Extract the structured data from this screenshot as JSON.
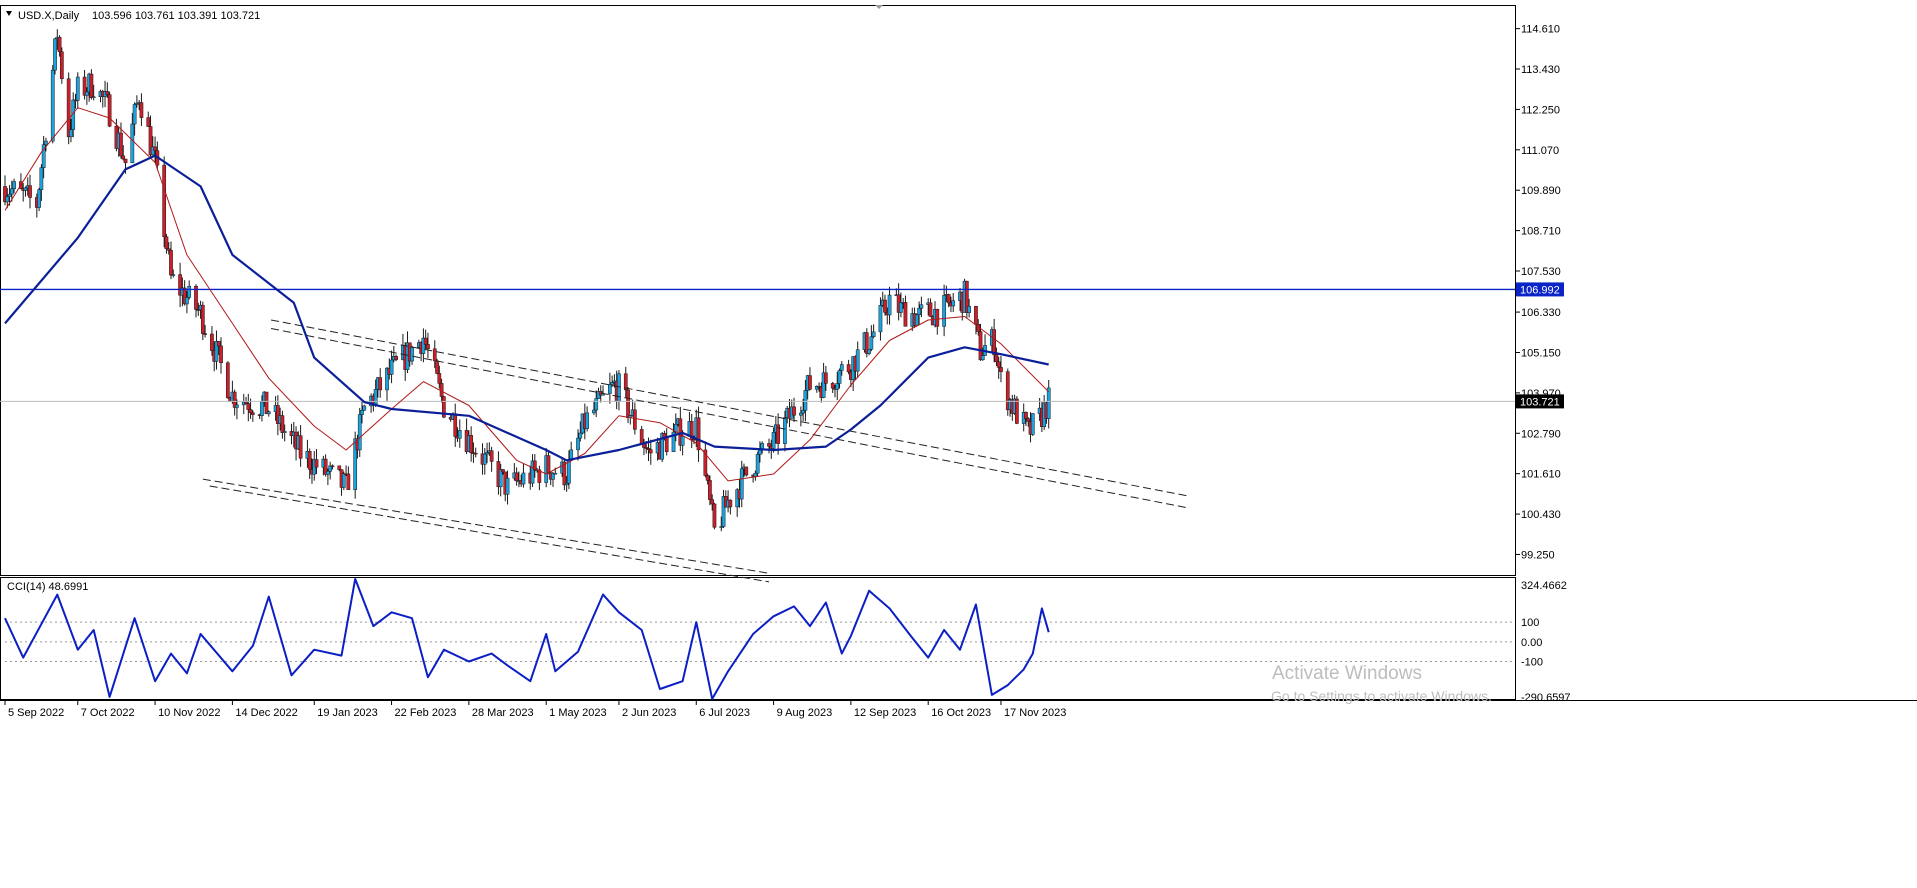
{
  "header": {
    "symbol": "USD.X,Daily",
    "ohlc": "103.596 103.761 103.391 103.721"
  },
  "chart_data": {
    "type": "candlestick",
    "price_axis": {
      "ticks": [
        "114.610",
        "113.430",
        "112.250",
        "111.070",
        "109.890",
        "108.710",
        "107.530",
        "106.330",
        "105.150",
        "103.970",
        "102.790",
        "101.610",
        "100.430",
        "99.250"
      ],
      "range": [
        98.65,
        115.3
      ]
    },
    "date_labels": [
      "5 Sep 2022",
      "7 Oct 2022",
      "10 Nov 2022",
      "14 Dec 2022",
      "19 Jan 2023",
      "22 Feb 2023",
      "28 Mar 2023",
      "1 May 2023",
      "2 Jun 2023",
      "6 Jul 2023",
      "9 Aug 2023",
      "12 Sep 2023",
      "16 Oct 2023",
      "17 Nov 2023"
    ],
    "horizontal_level": {
      "value": 106.992,
      "label": "106.992",
      "color": "#0b24c8"
    },
    "current_price": {
      "value": 103.721,
      "label": "103.721"
    },
    "price_path": [
      [
        "5 Sep 2022",
        110.0
      ],
      [
        "19 Sep 2022",
        109.5
      ],
      [
        "28 Sep 2022",
        114.5
      ],
      [
        "3 Oct 2022",
        111.6
      ],
      [
        "7 Oct 2022",
        112.8
      ],
      [
        "14 Oct 2022",
        113.0
      ],
      [
        "21 Oct 2022",
        112.2
      ],
      [
        "28 Oct 2022",
        110.7
      ],
      [
        "3 Nov 2022",
        112.7
      ],
      [
        "10 Nov 2022",
        110.7
      ],
      [
        "17 Nov 2022",
        107.3
      ],
      [
        "30 Nov 2022",
        106.3
      ],
      [
        "14 Dec 2022",
        103.9
      ],
      [
        "30 Dec 2022",
        103.5
      ],
      [
        "13 Jan 2023",
        102.2
      ],
      [
        "19 Jan 2023",
        101.9
      ],
      [
        "2 Feb 2023",
        101.2
      ],
      [
        "10 Feb 2023",
        103.5
      ],
      [
        "22 Feb 2023",
        104.6
      ],
      [
        "8 Mar 2023",
        105.6
      ],
      [
        "17 Mar 2023",
        103.6
      ],
      [
        "28 Mar 2023",
        102.6
      ],
      [
        "14 Apr 2023",
        101.2
      ],
      [
        "1 May 2023",
        101.8
      ],
      [
        "10 May 2023",
        101.6
      ],
      [
        "18 May 2023",
        103.1
      ],
      [
        "31 May 2023",
        104.2
      ],
      [
        "2 Jun 2023",
        104.1
      ],
      [
        "15 Jun 2023",
        102.2
      ],
      [
        "30 Jun 2023",
        102.9
      ],
      [
        "6 Jul 2023",
        103.0
      ],
      [
        "14 Jul 2023",
        99.9
      ],
      [
        "20 Jul 2023",
        100.8
      ],
      [
        "31 Jul 2023",
        101.9
      ],
      [
        "9 Aug 2023",
        102.5
      ],
      [
        "18 Aug 2023",
        103.5
      ],
      [
        "25 Aug 2023",
        104.2
      ],
      [
        "1 Sep 2023",
        104.3
      ],
      [
        "12 Sep 2023",
        104.8
      ],
      [
        "21 Sep 2023",
        105.6
      ],
      [
        "29 Sep 2023",
        106.7
      ],
      [
        "4 Oct 2023",
        106.4
      ],
      [
        "12 Oct 2023",
        106.2
      ],
      [
        "16 Oct 2023",
        106.3
      ],
      [
        "23 Oct 2023",
        106.4
      ],
      [
        "1 Nov 2023",
        106.8
      ],
      [
        "8 Nov 2023",
        105.2
      ],
      [
        "14 Nov 2023",
        105.5
      ],
      [
        "17 Nov 2023",
        104.3
      ],
      [
        "22 Nov 2023",
        103.6
      ],
      [
        "29 Nov 2023",
        102.8
      ],
      [
        "4 Dec 2023",
        103.2
      ],
      [
        "8 Dec 2023",
        103.721
      ]
    ],
    "ma_slow": {
      "color": "#0b1f99",
      "points": [
        [
          "5 Sep 2022",
          106.0
        ],
        [
          "7 Oct 2022",
          108.5
        ],
        [
          "28 Oct 2022",
          110.5
        ],
        [
          "10 Nov 2022",
          110.9
        ],
        [
          "30 Nov 2022",
          110.0
        ],
        [
          "14 Dec 2022",
          108.0
        ],
        [
          "10 Jan 2023",
          106.6
        ],
        [
          "19 Jan 2023",
          105.0
        ],
        [
          "10 Feb 2023",
          103.7
        ],
        [
          "22 Feb 2023",
          103.5
        ],
        [
          "28 Mar 2023",
          103.3
        ],
        [
          "1 May 2023",
          102.3
        ],
        [
          "10 May 2023",
          102.0
        ],
        [
          "2 Jun 2023",
          102.3
        ],
        [
          "30 Jun 2023",
          102.8
        ],
        [
          "14 Jul 2023",
          102.4
        ],
        [
          "9 Aug 2023",
          102.3
        ],
        [
          "1 Sep 2023",
          102.4
        ],
        [
          "12 Sep 2023",
          102.9
        ],
        [
          "25 Sep 2023",
          103.6
        ],
        [
          "16 Oct 2023",
          105.0
        ],
        [
          "1 Nov 2023",
          105.3
        ],
        [
          "17 Nov 2023",
          105.1
        ],
        [
          "8 Dec 2023",
          104.8
        ]
      ]
    },
    "ma_fast": {
      "color": "#b01818",
      "points": [
        [
          "5 Sep 2022",
          109.3
        ],
        [
          "21 Sep 2022",
          111.0
        ],
        [
          "7 Oct 2022",
          112.3
        ],
        [
          "21 Oct 2022",
          112.0
        ],
        [
          "10 Nov 2022",
          110.7
        ],
        [
          "24 Nov 2022",
          108.0
        ],
        [
          "14 Dec 2022",
          106.0
        ],
        [
          "30 Dec 2022",
          104.4
        ],
        [
          "19 Jan 2023",
          103.0
        ],
        [
          "2 Feb 2023",
          102.3
        ],
        [
          "22 Feb 2023",
          103.5
        ],
        [
          "8 Mar 2023",
          104.3
        ],
        [
          "28 Mar 2023",
          103.6
        ],
        [
          "18 Apr 2023",
          102.0
        ],
        [
          "1 May 2023",
          101.6
        ],
        [
          "18 May 2023",
          102.2
        ],
        [
          "2 Jun 2023",
          103.3
        ],
        [
          "20 Jun 2023",
          103.1
        ],
        [
          "6 Jul 2023",
          102.5
        ],
        [
          "20 Jul 2023",
          101.4
        ],
        [
          "9 Aug 2023",
          101.6
        ],
        [
          "25 Aug 2023",
          102.6
        ],
        [
          "12 Sep 2023",
          104.2
        ],
        [
          "29 Sep 2023",
          105.5
        ],
        [
          "16 Oct 2023",
          106.1
        ],
        [
          "1 Nov 2023",
          106.2
        ],
        [
          "17 Nov 2023",
          105.4
        ],
        [
          "8 Dec 2023",
          104.0
        ]
      ]
    },
    "channel_lines": [
      {
        "from": [
          "31 Dec 2022",
          106.1
        ],
        "to": [
          "8 Feb 2024",
          100.95
        ]
      },
      {
        "from": [
          "31 Dec 2022",
          105.85
        ],
        "to": [
          "8 Feb 2024",
          100.6
        ]
      },
      {
        "from": [
          "1 Dec 2022",
          101.45
        ],
        "to": [
          "7 Aug 2023",
          98.7
        ]
      },
      {
        "from": [
          "4 Dec 2022",
          101.25
        ],
        "to": [
          "7 Aug 2023",
          98.45
        ]
      }
    ],
    "indicator": {
      "label": "CCI(14) 48.6991",
      "color": "#0c1fc4",
      "ticks": [
        "324.4662",
        "100",
        "0.00",
        "-100",
        "-290.6597"
      ],
      "range": [
        -290.6597,
        324.4662
      ],
      "levels": [
        100,
        0,
        -100
      ],
      "values": [
        [
          "5 Sep 2022",
          120
        ],
        [
          "13 Sep 2022",
          -80
        ],
        [
          "28 Sep 2022",
          240
        ],
        [
          "7 Oct 2022",
          -40
        ],
        [
          "14 Oct 2022",
          60
        ],
        [
          "21 Oct 2022",
          -280
        ],
        [
          "1 Nov 2022",
          120
        ],
        [
          "10 Nov 2022",
          -200
        ],
        [
          "17 Nov 2022",
          -60
        ],
        [
          "24 Nov 2022",
          -160
        ],
        [
          "30 Nov 2022",
          40
        ],
        [
          "14 Dec 2022",
          -150
        ],
        [
          "23 Dec 2022",
          -20
        ],
        [
          "30 Dec 2022",
          230
        ],
        [
          "9 Jan 2023",
          -170
        ],
        [
          "19 Jan 2023",
          -40
        ],
        [
          "31 Jan 2023",
          -70
        ],
        [
          "6 Feb 2023",
          320
        ],
        [
          "14 Feb 2023",
          80
        ],
        [
          "22 Feb 2023",
          150
        ],
        [
          "3 Mar 2023",
          120
        ],
        [
          "10 Mar 2023",
          -180
        ],
        [
          "17 Mar 2023",
          -40
        ],
        [
          "28 Mar 2023",
          -100
        ],
        [
          "7 Apr 2023",
          -60
        ],
        [
          "14 Apr 2023",
          -120
        ],
        [
          "24 Apr 2023",
          -200
        ],
        [
          "1 May 2023",
          40
        ],
        [
          "5 May 2023",
          -150
        ],
        [
          "15 May 2023",
          -50
        ],
        [
          "26 May 2023",
          240
        ],
        [
          "2 Jun 2023",
          150
        ],
        [
          "12 Jun 2023",
          60
        ],
        [
          "20 Jun 2023",
          -240
        ],
        [
          "30 Jun 2023",
          -200
        ],
        [
          "6 Jul 2023",
          100
        ],
        [
          "13 Jul 2023",
          -290
        ],
        [
          "20 Jul 2023",
          -150
        ],
        [
          "31 Jul 2023",
          40
        ],
        [
          "9 Aug 2023",
          130
        ],
        [
          "18 Aug 2023",
          180
        ],
        [
          "25 Aug 2023",
          80
        ],
        [
          "1 Sep 2023",
          200
        ],
        [
          "8 Sep 2023",
          -60
        ],
        [
          "12 Sep 2023",
          30
        ],
        [
          "20 Sep 2023",
          260
        ],
        [
          "29 Sep 2023",
          170
        ],
        [
          "9 Oct 2023",
          20
        ],
        [
          "16 Oct 2023",
          -80
        ],
        [
          "23 Oct 2023",
          60
        ],
        [
          "30 Oct 2023",
          -40
        ],
        [
          "6 Nov 2023",
          190
        ],
        [
          "13 Nov 2023",
          -270
        ],
        [
          "20 Nov 2023",
          -220
        ],
        [
          "27 Nov 2023",
          -140
        ],
        [
          "1 Dec 2023",
          -60
        ],
        [
          "5 Dec 2023",
          170
        ],
        [
          "8 Dec 2023",
          48.6991
        ]
      ]
    }
  },
  "watermark": {
    "title": "Activate Windows",
    "subtitle": "Go to Settings to activate Windows."
  }
}
